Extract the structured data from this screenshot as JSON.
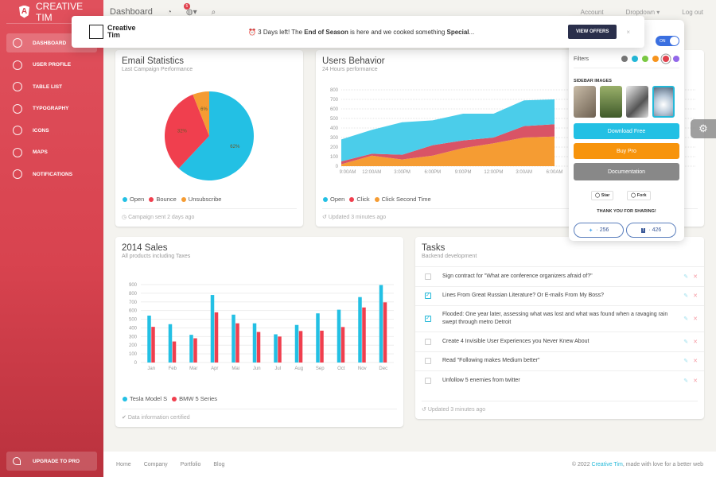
{
  "sidebar": {
    "brand": "CREATIVE TIM",
    "items": [
      {
        "label": "DASHBOARD",
        "icon": "chart-pie-icon",
        "active": true
      },
      {
        "label": "USER PROFILE",
        "icon": "user-icon"
      },
      {
        "label": "TABLE LIST",
        "icon": "clipboard-icon"
      },
      {
        "label": "TYPOGRAPHY",
        "icon": "paper-icon"
      },
      {
        "label": "ICONS",
        "icon": "atom-icon"
      },
      {
        "label": "MAPS",
        "icon": "pin-icon"
      },
      {
        "label": "NOTIFICATIONS",
        "icon": "bell-icon"
      }
    ],
    "upgrade": "UPGRADE TO PRO"
  },
  "topnav": {
    "title": "Dashboard",
    "notif_count": "5",
    "links": [
      "Account",
      "Dropdown",
      "Log out"
    ]
  },
  "banner": {
    "brand1": "Creative",
    "brand2": "Tim",
    "msg_pre": "⏰ 3 Days left! The ",
    "msg_b1": "End of Season",
    "msg_mid": " is here and we cooked something ",
    "msg_b2": "Special",
    "msg_post": "...",
    "button": "VIEW OFFERS",
    "close": "×"
  },
  "email": {
    "title": "Email Statistics",
    "subtitle": "Last Campaign Performance",
    "footer": "Campaign sent 2 days ago"
  },
  "users": {
    "title": "Users Behavior",
    "subtitle": "24 Hours performance",
    "footer": "Updated 3 minutes ago"
  },
  "sales": {
    "title": "2014 Sales",
    "subtitle": "All products including Taxes",
    "footer": "Data information certified"
  },
  "tasks": {
    "title": "Tasks",
    "subtitle": "Backend development",
    "footer": "Updated 3 minutes ago",
    "items": [
      {
        "text": "Sign contract for \"What are conference organizers afraid of?\"",
        "checked": false
      },
      {
        "text": "Lines From Great Russian Literature? Or E-mails From My Boss?",
        "checked": true
      },
      {
        "text": "Flooded: One year later, assessing what was lost and what was found when a ravaging rain swept through metro Detroit",
        "checked": true
      },
      {
        "text": "Create 4 Invisible User Experiences you Never Knew About",
        "checked": false
      },
      {
        "text": "Read \"Following makes Medium better\"",
        "checked": false
      },
      {
        "text": "Unfollow 5 enemies from twitter",
        "checked": false
      }
    ]
  },
  "plugin": {
    "toggle": "ON",
    "filters_label": "Filters",
    "filter_colors": [
      "#777777",
      "#23b8d8",
      "#7ac943",
      "#f7941d",
      "#e0404c",
      "#9368e9"
    ],
    "sidebar_images_label": "SIDEBAR IMAGES",
    "download": "Download Free",
    "buy": "Buy Pro",
    "docs": "Documentation",
    "star": "Star",
    "fork": "Fork",
    "thanks": "THANK YOU FOR SHARING!",
    "twitter": "· 256",
    "facebook": "· 426"
  },
  "footer": {
    "links": [
      "Home",
      "Company",
      "Portfolio",
      "Blog"
    ],
    "copy_pre": "© 2022 ",
    "copy_link": "Creative Tim",
    "copy_post": ", made with love for a better web"
  },
  "colors": {
    "sidebar": "#d8434f",
    "cyan": "#23c0e4",
    "red": "#f03f4e",
    "orange": "#f59c33"
  },
  "chart_data": [
    {
      "type": "pie",
      "legend": [
        "Open",
        "Bounce",
        "Unsubscribe"
      ],
      "values": [
        62,
        32,
        6
      ],
      "labels": [
        "62%",
        "32%",
        "6%"
      ],
      "colors": [
        "#23c0e4",
        "#f03f4e",
        "#f59c33"
      ]
    },
    {
      "type": "area",
      "stacked": true,
      "x": [
        "9:00AM",
        "12:00AM",
        "3:00PM",
        "6:00PM",
        "9:00PM",
        "12:00PM",
        "3:00AM",
        "6:00AM"
      ],
      "yticks": [
        0,
        100,
        200,
        300,
        400,
        500,
        600,
        700,
        800
      ],
      "ylim": [
        0,
        800
      ],
      "series": [
        {
          "name": "Click Second Time",
          "values": [
            20,
            110,
            70,
            110,
            190,
            240,
            300,
            310
          ],
          "color": "#f59c33"
        },
        {
          "name": "Click",
          "values": [
            30,
            20,
            50,
            110,
            80,
            60,
            120,
            130
          ],
          "color": "#d95466"
        },
        {
          "name": "Open",
          "values": [
            230,
            250,
            340,
            260,
            280,
            250,
            270,
            260
          ],
          "color": "#4bcdea"
        }
      ],
      "legend": [
        "Open",
        "Click",
        "Click Second Time"
      ]
    },
    {
      "type": "bar",
      "categories": [
        "Jan",
        "Feb",
        "Mar",
        "Apr",
        "Mai",
        "Jun",
        "Jul",
        "Aug",
        "Sep",
        "Oct",
        "Nov",
        "Dec"
      ],
      "yticks": [
        0,
        100,
        200,
        300,
        400,
        500,
        600,
        700,
        800,
        900
      ],
      "ylim": [
        0,
        900
      ],
      "series": [
        {
          "name": "Tesla Model S",
          "values": [
            542,
            443,
            320,
            780,
            553,
            453,
            326,
            434,
            568,
            610,
            756,
            895
          ],
          "color": "#23c0e4"
        },
        {
          "name": "BMW 5 Series",
          "values": [
            412,
            243,
            280,
            580,
            453,
            353,
            300,
            364,
            368,
            410,
            636,
            695
          ],
          "color": "#f03f4e"
        }
      ]
    }
  ]
}
